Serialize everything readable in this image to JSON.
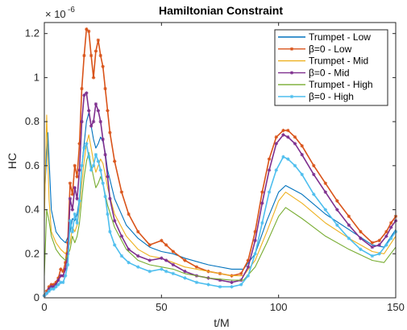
{
  "chart_data": {
    "type": "line",
    "title": "Hamiltonian Constraint",
    "xlabel": "t/M",
    "ylabel": "HC",
    "y_exponent_label": "× 10",
    "y_exponent_power": "-6",
    "xlim": [
      0,
      150
    ],
    "ylim": [
      0,
      1.25
    ],
    "x_ticks": [
      0,
      50,
      100,
      150
    ],
    "x_tick_labels": [
      "0",
      "50",
      "100",
      "150"
    ],
    "y_ticks": [
      0,
      0.2,
      0.4,
      0.6,
      0.8,
      1,
      1.2
    ],
    "y_tick_labels": [
      "0",
      "0.2",
      "0.4",
      "0.6",
      "0.8",
      "1",
      "1.2"
    ],
    "grid": false,
    "legend_position": "top-right",
    "series": [
      {
        "name": "Trumpet - Low",
        "color": "#0072BD",
        "marker": "none",
        "x": [
          0,
          1.5,
          3,
          5,
          7,
          9,
          11,
          12,
          13,
          14,
          15,
          16,
          17,
          18,
          19,
          20,
          21,
          22,
          23,
          24,
          25,
          26,
          27,
          30,
          35,
          40,
          45,
          50,
          55,
          60,
          70,
          80,
          85,
          90,
          95,
          100,
          103,
          110,
          120,
          130,
          140,
          145,
          150
        ],
        "y": [
          0.45,
          0.75,
          0.4,
          0.3,
          0.27,
          0.25,
          0.3,
          0.36,
          0.35,
          0.38,
          0.45,
          0.6,
          0.7,
          0.8,
          0.84,
          0.78,
          0.72,
          0.68,
          0.7,
          0.73,
          0.71,
          0.66,
          0.58,
          0.45,
          0.33,
          0.27,
          0.23,
          0.21,
          0.2,
          0.18,
          0.15,
          0.13,
          0.13,
          0.2,
          0.35,
          0.48,
          0.51,
          0.47,
          0.38,
          0.31,
          0.24,
          0.23,
          0.31
        ]
      },
      {
        "name": "β=0 - Low",
        "color": "#D95319",
        "marker": "*",
        "x": [
          0,
          1,
          2,
          3,
          4,
          5,
          6,
          7,
          8,
          9,
          10,
          11,
          12,
          13,
          14,
          15,
          16,
          17,
          18,
          19,
          20,
          21,
          22,
          23,
          24,
          25,
          26,
          27,
          28,
          30,
          33,
          36,
          40,
          45,
          50,
          52,
          55,
          60,
          65,
          70,
          75,
          80,
          84,
          87,
          90,
          93,
          96,
          99,
          102,
          104,
          107,
          110,
          115,
          120,
          125,
          130,
          135,
          140,
          143,
          146,
          148,
          150
        ],
        "y": [
          0.01,
          0.03,
          0.05,
          0.06,
          0.06,
          0.07,
          0.09,
          0.13,
          0.12,
          0.16,
          0.25,
          0.52,
          0.47,
          0.6,
          0.55,
          0.7,
          0.95,
          1.1,
          1.22,
          1.21,
          1.1,
          1.0,
          1.12,
          1.17,
          1.1,
          1.05,
          0.95,
          0.85,
          0.75,
          0.62,
          0.48,
          0.38,
          0.3,
          0.24,
          0.26,
          0.24,
          0.21,
          0.17,
          0.14,
          0.12,
          0.11,
          0.1,
          0.11,
          0.17,
          0.3,
          0.48,
          0.63,
          0.73,
          0.76,
          0.76,
          0.73,
          0.69,
          0.6,
          0.52,
          0.44,
          0.37,
          0.3,
          0.25,
          0.26,
          0.3,
          0.34,
          0.37
        ]
      },
      {
        "name": "Trumpet - Mid",
        "color": "#EDB120",
        "marker": "none",
        "x": [
          0,
          1,
          2,
          3,
          5,
          7,
          9,
          11,
          12,
          13,
          14,
          15,
          16,
          17,
          18,
          19,
          20,
          21,
          22,
          23,
          24,
          25,
          26,
          27,
          30,
          35,
          40,
          45,
          50,
          55,
          60,
          70,
          80,
          85,
          90,
          95,
          100,
          103,
          110,
          120,
          130,
          140,
          145,
          150
        ],
        "y": [
          0.35,
          0.83,
          0.45,
          0.3,
          0.25,
          0.22,
          0.2,
          0.25,
          0.32,
          0.3,
          0.33,
          0.4,
          0.52,
          0.62,
          0.7,
          0.74,
          0.68,
          0.62,
          0.57,
          0.6,
          0.63,
          0.61,
          0.56,
          0.5,
          0.38,
          0.28,
          0.22,
          0.19,
          0.18,
          0.16,
          0.14,
          0.12,
          0.1,
          0.1,
          0.17,
          0.3,
          0.44,
          0.48,
          0.43,
          0.34,
          0.27,
          0.21,
          0.2,
          0.28
        ]
      },
      {
        "name": "β=0 - Mid",
        "color": "#7E2F8E",
        "marker": "*",
        "x": [
          0,
          1,
          2,
          3,
          4,
          5,
          6,
          7,
          8,
          9,
          10,
          11,
          12,
          13,
          14,
          15,
          16,
          17,
          18,
          19,
          20,
          21,
          22,
          23,
          24,
          25,
          26,
          27,
          28,
          30,
          33,
          36,
          40,
          45,
          50,
          52,
          55,
          60,
          65,
          70,
          75,
          80,
          84,
          87,
          90,
          93,
          96,
          99,
          102,
          104,
          107,
          110,
          115,
          120,
          125,
          130,
          135,
          140,
          143,
          146,
          148,
          150
        ],
        "y": [
          0.01,
          0.02,
          0.04,
          0.05,
          0.05,
          0.06,
          0.08,
          0.1,
          0.1,
          0.13,
          0.2,
          0.45,
          0.4,
          0.5,
          0.45,
          0.58,
          0.8,
          0.92,
          0.93,
          0.85,
          0.78,
          0.8,
          0.88,
          0.85,
          0.8,
          0.72,
          0.65,
          0.55,
          0.45,
          0.35,
          0.28,
          0.22,
          0.19,
          0.17,
          0.18,
          0.17,
          0.15,
          0.12,
          0.1,
          0.09,
          0.08,
          0.07,
          0.08,
          0.14,
          0.26,
          0.43,
          0.58,
          0.7,
          0.74,
          0.73,
          0.7,
          0.65,
          0.56,
          0.48,
          0.4,
          0.33,
          0.27,
          0.23,
          0.24,
          0.28,
          0.32,
          0.35
        ]
      },
      {
        "name": "Trumpet - High",
        "color": "#77AC30",
        "marker": "none",
        "x": [
          0,
          1,
          2,
          3,
          5,
          7,
          9,
          11,
          12,
          13,
          14,
          15,
          16,
          17,
          18,
          19,
          20,
          21,
          22,
          23,
          24,
          25,
          26,
          27,
          30,
          35,
          40,
          45,
          50,
          55,
          60,
          70,
          80,
          85,
          90,
          95,
          100,
          103,
          110,
          120,
          130,
          140,
          145,
          150
        ],
        "y": [
          0.1,
          0.4,
          0.35,
          0.28,
          0.22,
          0.19,
          0.17,
          0.22,
          0.28,
          0.25,
          0.28,
          0.34,
          0.45,
          0.55,
          0.62,
          0.66,
          0.6,
          0.55,
          0.5,
          0.52,
          0.55,
          0.52,
          0.47,
          0.42,
          0.32,
          0.22,
          0.17,
          0.15,
          0.14,
          0.13,
          0.11,
          0.09,
          0.08,
          0.08,
          0.14,
          0.25,
          0.37,
          0.41,
          0.36,
          0.28,
          0.22,
          0.17,
          0.16,
          0.23
        ]
      },
      {
        "name": "β=0 - High",
        "color": "#4DBEEE",
        "marker": "*",
        "x": [
          0,
          1,
          2,
          3,
          4,
          5,
          6,
          7,
          8,
          9,
          10,
          11,
          12,
          13,
          14,
          15,
          16,
          17,
          18,
          19,
          20,
          21,
          22,
          23,
          24,
          25,
          26,
          27,
          28,
          30,
          33,
          36,
          40,
          45,
          50,
          52,
          55,
          60,
          65,
          70,
          75,
          80,
          84,
          87,
          90,
          93,
          96,
          99,
          102,
          104,
          107,
          110,
          115,
          120,
          125,
          130,
          135,
          140,
          143,
          146,
          148,
          150
        ],
        "y": [
          0.01,
          0.02,
          0.03,
          0.04,
          0.04,
          0.05,
          0.06,
          0.07,
          0.07,
          0.1,
          0.15,
          0.35,
          0.3,
          0.38,
          0.34,
          0.44,
          0.6,
          0.68,
          0.7,
          0.64,
          0.58,
          0.6,
          0.65,
          0.62,
          0.58,
          0.52,
          0.46,
          0.38,
          0.3,
          0.24,
          0.19,
          0.16,
          0.14,
          0.12,
          0.13,
          0.12,
          0.11,
          0.09,
          0.07,
          0.06,
          0.05,
          0.05,
          0.06,
          0.1,
          0.2,
          0.34,
          0.48,
          0.58,
          0.64,
          0.63,
          0.6,
          0.56,
          0.47,
          0.4,
          0.33,
          0.27,
          0.22,
          0.19,
          0.2,
          0.24,
          0.27,
          0.3
        ]
      }
    ]
  }
}
